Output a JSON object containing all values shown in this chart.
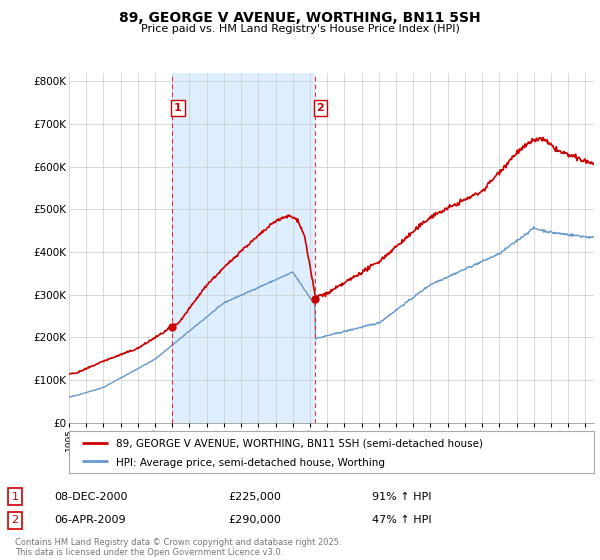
{
  "title": "89, GEORGE V AVENUE, WORTHING, BN11 5SH",
  "subtitle": "Price paid vs. HM Land Registry's House Price Index (HPI)",
  "legend_line1": "89, GEORGE V AVENUE, WORTHING, BN11 5SH (semi-detached house)",
  "legend_line2": "HPI: Average price, semi-detached house, Worthing",
  "table": [
    {
      "num": "1",
      "date": "08-DEC-2000",
      "price": "£225,000",
      "hpi": "91% ↑ HPI"
    },
    {
      "num": "2",
      "date": "06-APR-2009",
      "price": "£290,000",
      "hpi": "47% ↑ HPI"
    }
  ],
  "footnote": "Contains HM Land Registry data © Crown copyright and database right 2025.\nThis data is licensed under the Open Government Licence v3.0.",
  "vline1_x": 2001.0,
  "vline2_x": 2009.27,
  "purchase1_y": 225000,
  "purchase2_y": 290000,
  "red_color": "#cc0000",
  "blue_color": "#6699cc",
  "vline_color": "#dd3333",
  "shading_color": "#ddeeff",
  "background_color": "#ffffff",
  "plot_bg_color": "#ffffff",
  "grid_color": "#cccccc",
  "ylim": [
    0,
    820000
  ],
  "xlim_start": 1995.0,
  "xlim_end": 2025.5
}
